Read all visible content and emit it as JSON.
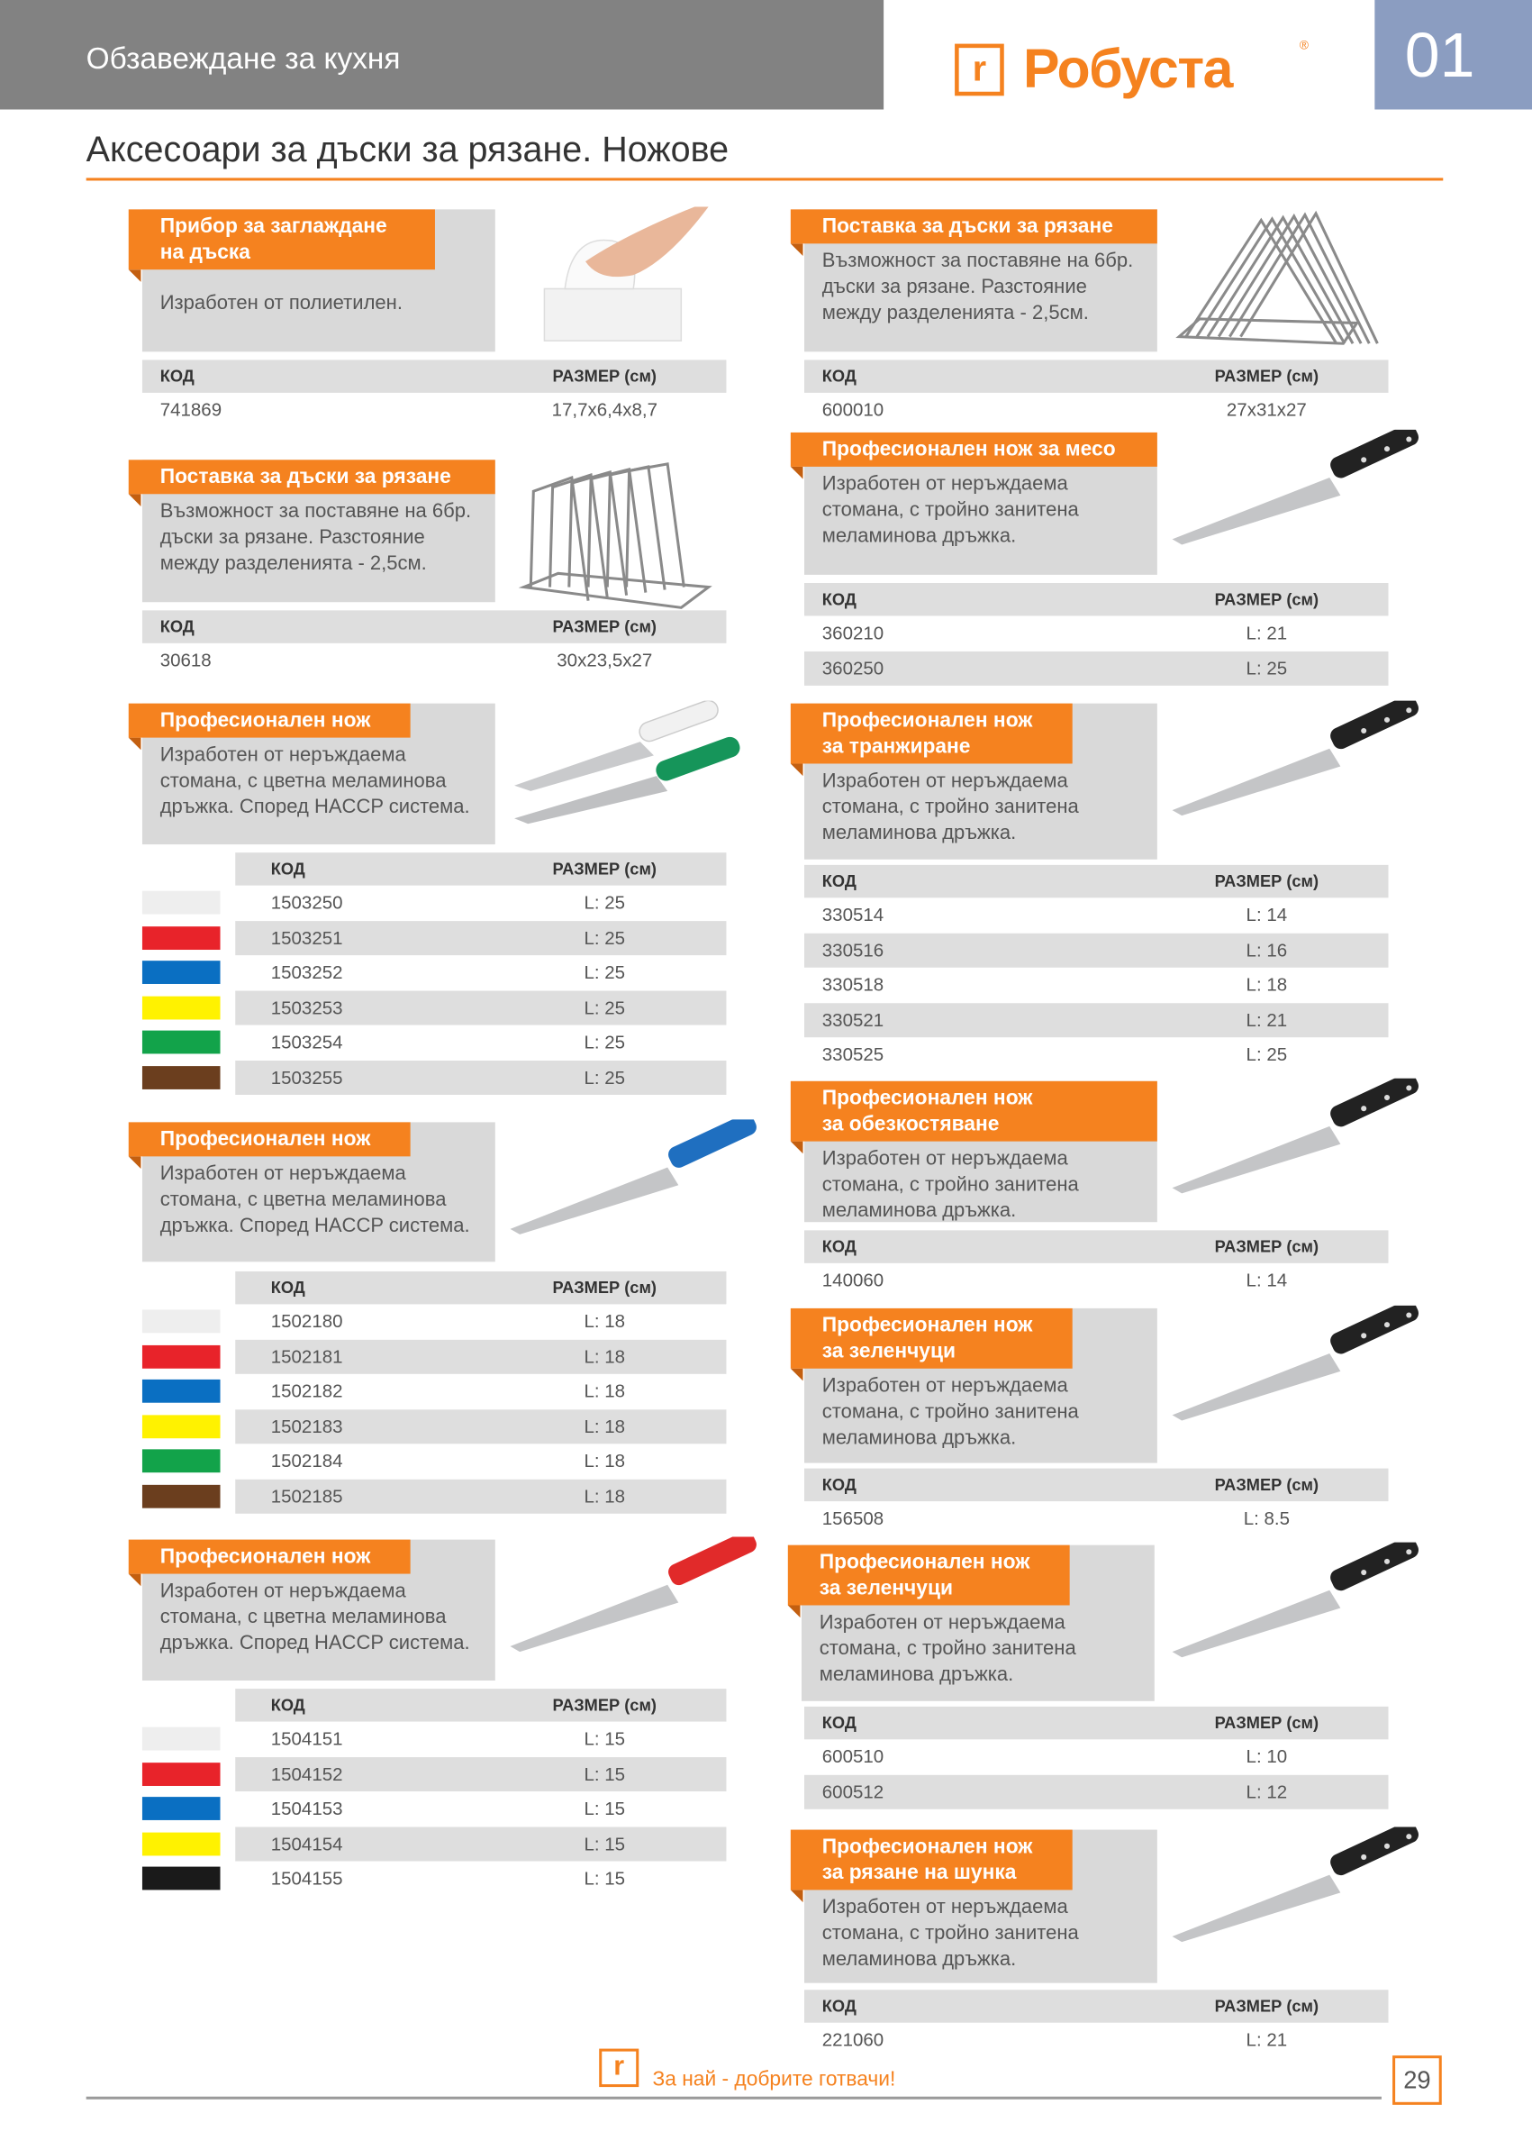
{
  "header": {
    "section": "Обзавеждане за кухня",
    "brand": "Робуста",
    "chapter": "01",
    "accent": "#f5821f"
  },
  "page": {
    "title": "Аксесоари за дъски за рязане. Ножове",
    "footer_slogan": "За най - добрите готвачи!",
    "page_number": "29"
  },
  "table_headers": {
    "code": "КОД",
    "size": "РАЗМЕР (см)"
  },
  "swatch_colors": {
    "white": "#eeeeee",
    "red": "#e8232a",
    "blue": "#0a6fc2",
    "yellow": "#fff200",
    "green": "#12a34a",
    "brown": "#6b3e1e",
    "black": "#1a1a1a"
  },
  "left": [
    {
      "title": [
        "Прибор за заглаждане",
        "на дъска"
      ],
      "desc": [
        "Изработен от полиетилен."
      ],
      "image": "board-scraper",
      "rows": [
        {
          "code": "741869",
          "size": "17,7x6,4x8,7"
        }
      ]
    },
    {
      "title": [
        "Поставка за дъски за рязане"
      ],
      "desc": [
        "Възможност за поставяне на 6бр.",
        "дъски за рязане. Разстояние",
        "между разделенията - 2,5см."
      ],
      "image": "board-rack-upright",
      "rows": [
        {
          "code": "30618",
          "size": "30x23,5x27"
        }
      ]
    },
    {
      "title": [
        "Професионален нож"
      ],
      "desc": [
        "Изработен от неръждаема",
        "стомана, с цветна меламинова",
        "дръжка. Според HACCP система."
      ],
      "image": "knife-white-green",
      "rows": [
        {
          "color": "white",
          "code": "1503250",
          "size": "L: 25"
        },
        {
          "color": "red",
          "code": "1503251",
          "size": "L: 25"
        },
        {
          "color": "blue",
          "code": "1503252",
          "size": "L: 25"
        },
        {
          "color": "yellow",
          "code": "1503253",
          "size": "L: 25"
        },
        {
          "color": "green",
          "code": "1503254",
          "size": "L: 25"
        },
        {
          "color": "brown",
          "code": "1503255",
          "size": "L: 25"
        }
      ]
    },
    {
      "title": [
        "Професионален нож"
      ],
      "desc": [
        "Изработен от неръждаема",
        "стомана, с цветна меламинова",
        "дръжка. Според HACCP система."
      ],
      "image": "knife-blue",
      "rows": [
        {
          "color": "white",
          "code": "1502180",
          "size": "L: 18"
        },
        {
          "color": "red",
          "code": "1502181",
          "size": "L: 18"
        },
        {
          "color": "blue",
          "code": "1502182",
          "size": "L: 18"
        },
        {
          "color": "yellow",
          "code": "1502183",
          "size": "L: 18"
        },
        {
          "color": "green",
          "code": "1502184",
          "size": "L: 18"
        },
        {
          "color": "brown",
          "code": "1502185",
          "size": "L: 18"
        }
      ]
    },
    {
      "title": [
        "Професионален нож"
      ],
      "desc": [
        "Изработен от неръждаема",
        "стомана, с цветна меламинова",
        "дръжка. Според HACCP система."
      ],
      "image": "knife-red",
      "rows": [
        {
          "color": "white",
          "code": "1504151",
          "size": "L: 15"
        },
        {
          "color": "red",
          "code": "1504152",
          "size": "L: 15"
        },
        {
          "color": "blue",
          "code": "1504153",
          "size": "L: 15"
        },
        {
          "color": "yellow",
          "code": "1504154",
          "size": "L: 15"
        },
        {
          "color": "black",
          "code": "1504155",
          "size": "L: 15"
        }
      ]
    }
  ],
  "right": [
    {
      "title": [
        "Поставка за дъски за рязане"
      ],
      "desc": [
        "Възможност за поставяне на 6бр.",
        "дъски за рязане. Разстояние",
        "между разделенията - 2,5см."
      ],
      "image": "board-rack-a-frame",
      "rows": [
        {
          "code": "600010",
          "size": "27x31x27"
        }
      ]
    },
    {
      "title": [
        "Професионален нож за месо"
      ],
      "desc": [
        "Изработен от неръждаема",
        "стомана, с тройно занитена",
        "меламинова дръжка."
      ],
      "image": "knife-black",
      "rows": [
        {
          "code": "360210",
          "size": "L: 21"
        },
        {
          "code": "360250",
          "size": "L: 25"
        }
      ]
    },
    {
      "title": [
        "Професионален нож",
        "за транжиране"
      ],
      "desc": [
        "Изработен от неръждаема",
        "стомана, с тройно занитена",
        "меламинова дръжка."
      ],
      "image": "knife-black",
      "rows": [
        {
          "code": "330514",
          "size": "L: 14"
        },
        {
          "code": "330516",
          "size": "L: 16"
        },
        {
          "code": "330518",
          "size": "L: 18"
        },
        {
          "code": "330521",
          "size": "L: 21"
        },
        {
          "code": "330525",
          "size": "L: 25"
        }
      ]
    },
    {
      "title": [
        "Професионален нож",
        "за обезкостяване"
      ],
      "desc": [
        "Изработен от неръждаема",
        "стомана, с тройно занитена",
        "меламинова дръжка."
      ],
      "image": "knife-black",
      "rows": [
        {
          "code": "140060",
          "size": "L: 14"
        }
      ]
    },
    {
      "title": [
        "Професионален нож",
        "за зеленчуци"
      ],
      "desc": [
        "Изработен от неръждаема",
        "стомана, с тройно занитена",
        "меламинова дръжка."
      ],
      "image": "knife-black",
      "rows": [
        {
          "code": "156508",
          "size": "L: 8.5"
        }
      ]
    },
    {
      "title": [
        "Професионален нож",
        "за зеленчуци"
      ],
      "desc": [
        "Изработен от неръждаема",
        "стомана, с тройно занитена",
        "меламинова дръжка."
      ],
      "image": "knife-black",
      "rows": [
        {
          "code": "600510",
          "size": "L: 10"
        },
        {
          "code": "600512",
          "size": "L: 12"
        }
      ]
    },
    {
      "title": [
        "Професионален нож",
        "за рязане на шунка"
      ],
      "desc": [
        "Изработен от неръждаема",
        "стомана, с тройно занитена",
        "меламинова дръжка."
      ],
      "image": "knife-black",
      "rows": [
        {
          "code": "221060",
          "size": "L: 21"
        }
      ]
    }
  ]
}
